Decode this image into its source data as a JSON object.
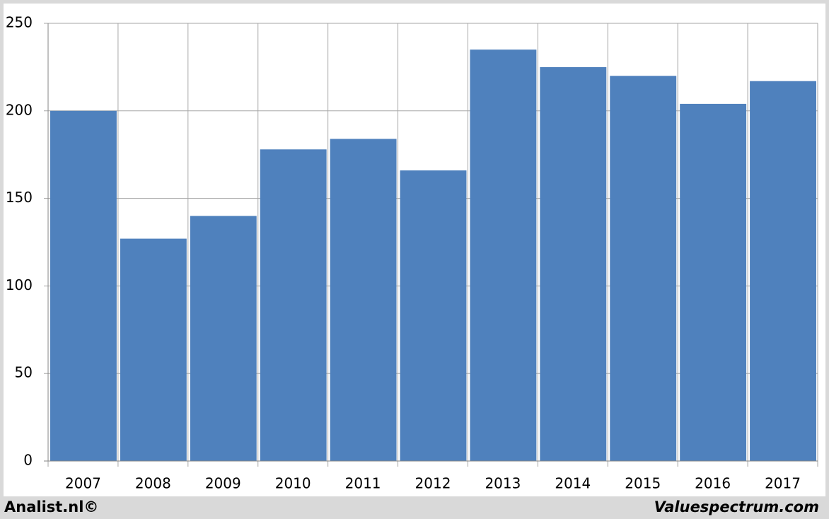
{
  "chart_data": {
    "type": "bar",
    "categories": [
      "2007",
      "2008",
      "2009",
      "2010",
      "2011",
      "2012",
      "2013",
      "2014",
      "2015",
      "2016",
      "2017"
    ],
    "values": [
      200,
      127,
      140,
      178,
      184,
      166,
      235,
      225,
      220,
      204,
      217
    ],
    "color": "#4f81bd",
    "ylim": [
      0,
      250
    ],
    "yticks": [
      0,
      50,
      100,
      150,
      200,
      250
    ],
    "grid": true,
    "annotations": [
      "Analist.nl©",
      "Valuespectrum.com"
    ]
  }
}
